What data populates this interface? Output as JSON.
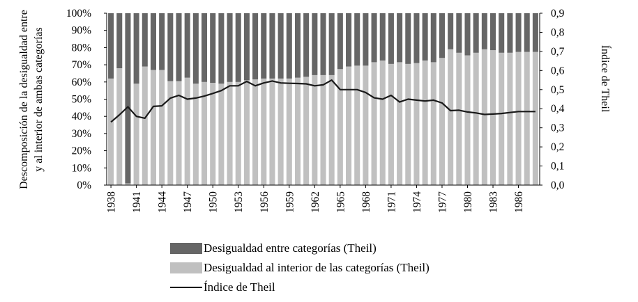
{
  "chart_data": {
    "type": "bar",
    "stacked_percent": true,
    "title": "",
    "ylabel_left": [
      "Descomposición de la desigualdad entre",
      "y al interior de ambas categorías"
    ],
    "ylabel_right": "Índice de Theil",
    "xlabel": "",
    "y_left_ticks": [
      "0%",
      "10%",
      "20%",
      "30%",
      "40%",
      "50%",
      "60%",
      "70%",
      "80%",
      "90%",
      "100%"
    ],
    "y_right_ticks": [
      "0,0",
      "0,1",
      "0,2",
      "0,3",
      "0,4",
      "0,5",
      "0,6",
      "0,7",
      "0,8",
      "0,9"
    ],
    "ylim_left": [
      0,
      100
    ],
    "ylim_right": [
      0,
      0.9
    ],
    "x_tick_labels": [
      "1938",
      "1941",
      "1944",
      "1947",
      "1950",
      "1953",
      "1956",
      "1959",
      "1962",
      "1965",
      "1968",
      "1971",
      "1974",
      "1977",
      "1980",
      "1983",
      "1986"
    ],
    "years": [
      1938,
      1939,
      1940,
      1941,
      1942,
      1943,
      1944,
      1945,
      1946,
      1947,
      1948,
      1949,
      1950,
      1951,
      1952,
      1953,
      1954,
      1955,
      1956,
      1957,
      1958,
      1959,
      1960,
      1961,
      1962,
      1963,
      1964,
      1965,
      1966,
      1967,
      1968,
      1969,
      1970,
      1971,
      1972,
      1973,
      1974,
      1975,
      1976,
      1977,
      1978,
      1979,
      1980,
      1981,
      1982,
      1983,
      1984,
      1985,
      1986,
      1987,
      1988
    ],
    "series": [
      {
        "name": "Desigualdad entre categorías (Theil)",
        "color": "#666666",
        "axis": "left",
        "values": [
          38,
          32,
          99,
          41,
          31,
          33,
          33,
          39.5,
          39.5,
          37.5,
          41,
          40,
          40.5,
          41,
          40,
          40,
          39,
          38.5,
          38,
          38,
          38,
          38,
          37.5,
          37,
          36,
          36,
          36,
          32.5,
          31,
          30.5,
          30.5,
          28.5,
          27.5,
          29.5,
          28.5,
          29.5,
          29,
          27.5,
          28.5,
          26,
          21,
          23,
          24.5,
          23,
          21,
          21.5,
          23,
          23,
          22.5,
          22.5,
          22.5
        ]
      },
      {
        "name": "Desigualdad al interior de las categorías (Theil)",
        "color": "#c0c0c0",
        "axis": "left",
        "values": [
          62,
          68,
          1,
          59,
          69,
          67,
          67,
          60.5,
          60.5,
          62.5,
          59,
          60,
          59.5,
          59,
          60,
          60,
          61,
          61.5,
          62,
          62,
          62,
          62,
          62.5,
          63,
          64,
          64,
          64,
          67.5,
          69,
          69.5,
          69.5,
          71.5,
          72.5,
          70.5,
          71.5,
          70.5,
          71,
          72.5,
          71.5,
          74,
          79,
          77,
          75.5,
          77,
          79,
          78.5,
          77,
          77,
          77.5,
          77.5,
          77.5
        ]
      },
      {
        "name": "Índice de Theil",
        "type": "line",
        "color": "#1a1a1a",
        "axis": "right",
        "values": [
          0.33,
          0.368,
          0.41,
          0.36,
          0.35,
          0.412,
          0.415,
          0.455,
          0.47,
          0.45,
          0.456,
          0.466,
          0.48,
          0.495,
          0.52,
          0.52,
          0.543,
          0.52,
          0.535,
          0.545,
          0.535,
          0.533,
          0.532,
          0.53,
          0.52,
          0.525,
          0.55,
          0.5,
          0.5,
          0.5,
          0.485,
          0.457,
          0.45,
          0.47,
          0.435,
          0.45,
          0.445,
          0.44,
          0.445,
          0.43,
          0.39,
          0.392,
          0.383,
          0.378,
          0.37,
          0.372,
          0.375,
          0.38,
          0.385,
          0.385,
          0.385
        ]
      }
    ],
    "grid": false,
    "legend_position": "bottom"
  },
  "legend": [
    {
      "label": "Desigualdad entre categorías (Theil)",
      "kind": "box",
      "color": "#666666"
    },
    {
      "label": "Desigualdad al interior de las categorías (Theil)",
      "kind": "box",
      "color": "#c0c0c0"
    },
    {
      "label": "Índice de Theil",
      "kind": "line",
      "color": "#1a1a1a"
    }
  ]
}
